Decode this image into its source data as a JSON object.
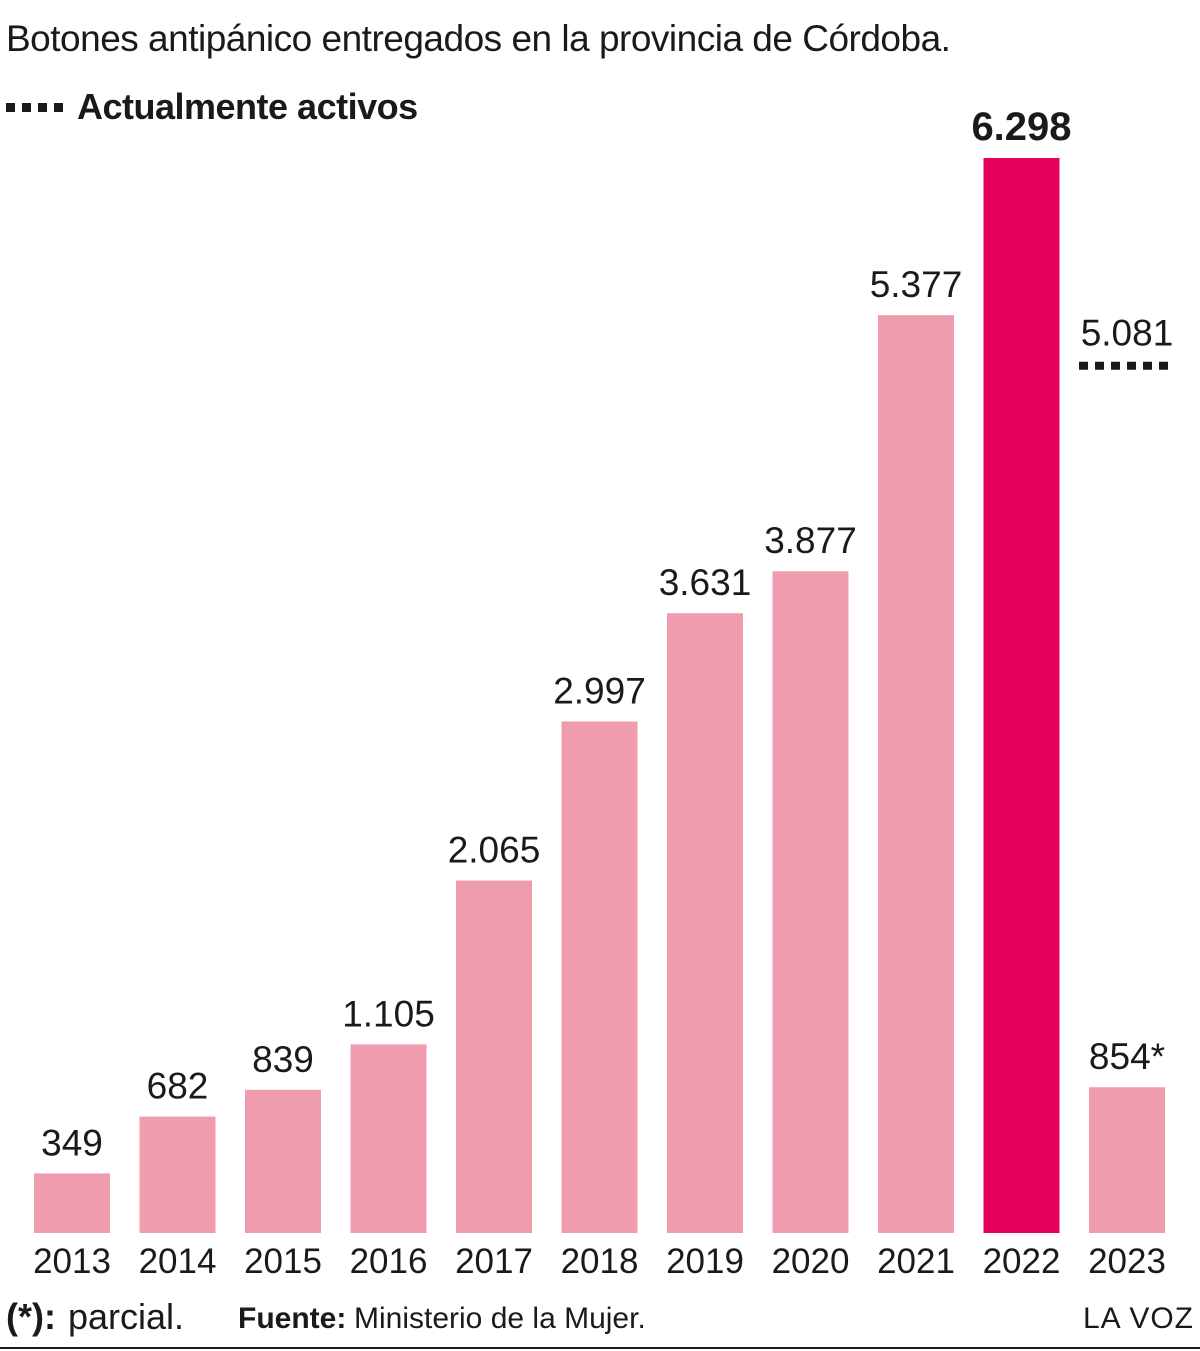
{
  "title": "Botones antipánico entregados en la provincia de Córdoba.",
  "legend": {
    "label": "Actualmente activos"
  },
  "chart_data": {
    "type": "bar",
    "categories": [
      "2013",
      "2014",
      "2015",
      "2016",
      "2017",
      "2018",
      "2019",
      "2020",
      "2021",
      "2022",
      "2023"
    ],
    "values": [
      349,
      682,
      839,
      1105,
      2065,
      2997,
      3631,
      3877,
      5377,
      6298,
      854
    ],
    "value_labels": [
      "349",
      "682",
      "839",
      "1.105",
      "2.065",
      "2.997",
      "3.631",
      "3.877",
      "5.377",
      "6.298",
      "854*"
    ],
    "highlight_category": "2022",
    "active": {
      "category": "2023",
      "value": 5081,
      "label": "5.081"
    },
    "ylim": [
      0,
      6298
    ],
    "colors": {
      "bar": "#f09caf",
      "highlight": "#e4005c",
      "text": "#1a1a1a"
    },
    "grid": false
  },
  "footer": {
    "footnote_symbol": "(*):",
    "footnote_text": "parcial.",
    "source_label": "Fuente:",
    "source_text": "Ministerio de la Mujer.",
    "brand": "LA VOZ"
  }
}
